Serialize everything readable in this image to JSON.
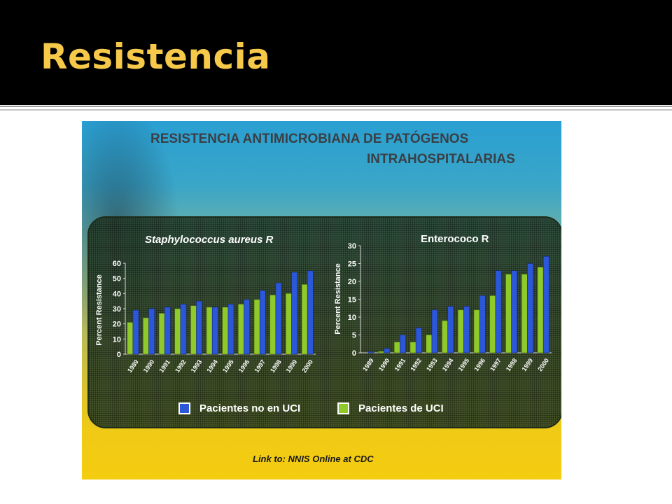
{
  "slide": {
    "title": "Resistencia"
  },
  "figure": {
    "title_line1": "RESISTENCIA ANTIMICROBIANA DE PATÓGENOS",
    "title_line2": "INTRAHOSPITALARIAS",
    "footer": "Link to: NNIS Online at CDC"
  },
  "legend": [
    {
      "label": "Pacientes no en UCI",
      "color": "#2b57d8"
    },
    {
      "label": "Pacientes de UCI",
      "color": "#8fca2a"
    }
  ],
  "colors": {
    "blue": "#2b57d8",
    "green": "#8fca2a",
    "text": "#ffffff"
  },
  "chart_data": [
    {
      "type": "bar",
      "title": "Staphylococcus aureus R",
      "ylabel": "Percent Resistance",
      "ylim": [
        0,
        60
      ],
      "yticks": [
        0,
        10,
        20,
        30,
        40,
        50,
        60
      ],
      "categories": [
        "1989",
        "1990",
        "1991",
        "1992",
        "1993",
        "1994",
        "1995",
        "1996",
        "1997",
        "1998",
        "1999",
        "2000"
      ],
      "series": [
        {
          "name": "Pacientes de UCI",
          "values": [
            21,
            24,
            27,
            30,
            32,
            31,
            31,
            33,
            36,
            39,
            40,
            46
          ]
        },
        {
          "name": "Pacientes no en UCI",
          "values": [
            29,
            30,
            31,
            33,
            35,
            31,
            33,
            36,
            42,
            47,
            54,
            55
          ]
        }
      ]
    },
    {
      "type": "bar",
      "title": "Enterococo R",
      "ylabel": "Percent Resistance",
      "ylim": [
        0,
        30
      ],
      "yticks": [
        0,
        5,
        10,
        15,
        20,
        25,
        30
      ],
      "categories": [
        "1989",
        "1990",
        "1991",
        "1992",
        "1993",
        "1994",
        "1995",
        "1996",
        "1997",
        "1998",
        "1999",
        "2000"
      ],
      "series": [
        {
          "name": "Pacientes de UCI",
          "values": [
            0,
            0.4,
            3,
            3,
            5,
            9,
            12,
            12,
            16,
            22,
            22,
            24
          ]
        },
        {
          "name": "Pacientes no en UCI",
          "values": [
            0.3,
            1.2,
            5,
            7,
            12,
            13,
            13,
            16,
            23,
            23,
            25,
            27
          ]
        }
      ]
    }
  ]
}
